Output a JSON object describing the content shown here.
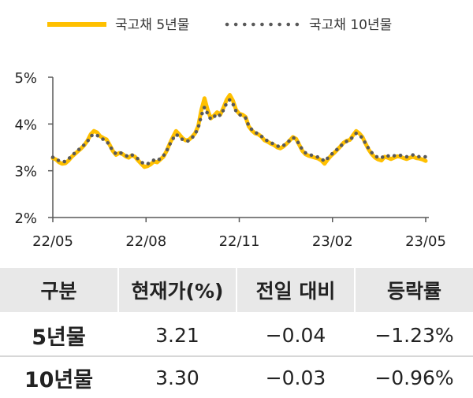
{
  "chart_data": {
    "type": "line",
    "title": "",
    "xlabel": "",
    "ylabel": "",
    "x_ticks": [
      "22/05",
      "22/08",
      "22/11",
      "23/02",
      "23/05"
    ],
    "y_ticks": [
      "2%",
      "3%",
      "4%",
      "5%"
    ],
    "ylim": [
      2,
      5
    ],
    "unit": "%",
    "grid": false,
    "legend": "top",
    "series": [
      {
        "name": "국고채 5년물",
        "color": "#FFC000",
        "style": "solid",
        "values": [
          3.27,
          3.24,
          3.18,
          3.15,
          3.16,
          3.22,
          3.3,
          3.36,
          3.42,
          3.48,
          3.55,
          3.65,
          3.78,
          3.85,
          3.82,
          3.74,
          3.7,
          3.67,
          3.55,
          3.42,
          3.34,
          3.38,
          3.36,
          3.31,
          3.28,
          3.33,
          3.3,
          3.22,
          3.15,
          3.08,
          3.1,
          3.14,
          3.2,
          3.18,
          3.24,
          3.3,
          3.42,
          3.58,
          3.72,
          3.85,
          3.78,
          3.7,
          3.65,
          3.66,
          3.72,
          3.8,
          3.95,
          4.3,
          4.55,
          4.3,
          4.12,
          4.18,
          4.25,
          4.2,
          4.35,
          4.52,
          4.62,
          4.5,
          4.3,
          4.22,
          4.2,
          4.15,
          3.95,
          3.86,
          3.8,
          3.78,
          3.73,
          3.65,
          3.62,
          3.58,
          3.55,
          3.5,
          3.48,
          3.52,
          3.58,
          3.65,
          3.72,
          3.68,
          3.55,
          3.42,
          3.35,
          3.32,
          3.3,
          3.28,
          3.26,
          3.22,
          3.15,
          3.24,
          3.32,
          3.38,
          3.45,
          3.52,
          3.6,
          3.64,
          3.66,
          3.76,
          3.85,
          3.8,
          3.72,
          3.58,
          3.45,
          3.35,
          3.28,
          3.24,
          3.22,
          3.3,
          3.28,
          3.25,
          3.28,
          3.31,
          3.3,
          3.27,
          3.25,
          3.28,
          3.3,
          3.27,
          3.26,
          3.24,
          3.21
        ]
      },
      {
        "name": "국고채 10년물",
        "color": "#595959",
        "style": "dotted",
        "values": [
          3.29,
          3.26,
          3.21,
          3.19,
          3.2,
          3.25,
          3.33,
          3.38,
          3.44,
          3.5,
          3.56,
          3.63,
          3.74,
          3.78,
          3.76,
          3.71,
          3.67,
          3.64,
          3.53,
          3.43,
          3.36,
          3.39,
          3.37,
          3.33,
          3.3,
          3.34,
          3.31,
          3.25,
          3.19,
          3.14,
          3.15,
          3.18,
          3.23,
          3.21,
          3.26,
          3.32,
          3.42,
          3.56,
          3.68,
          3.78,
          3.73,
          3.67,
          3.63,
          3.64,
          3.7,
          3.78,
          3.92,
          4.18,
          4.36,
          4.22,
          4.1,
          4.15,
          4.22,
          4.18,
          4.3,
          4.45,
          4.52,
          4.43,
          4.27,
          4.2,
          4.18,
          4.13,
          3.96,
          3.88,
          3.82,
          3.79,
          3.74,
          3.67,
          3.64,
          3.6,
          3.57,
          3.53,
          3.51,
          3.54,
          3.59,
          3.65,
          3.71,
          3.67,
          3.56,
          3.45,
          3.38,
          3.35,
          3.33,
          3.31,
          3.29,
          3.26,
          3.2,
          3.27,
          3.34,
          3.4,
          3.46,
          3.52,
          3.59,
          3.63,
          3.65,
          3.73,
          3.8,
          3.76,
          3.7,
          3.58,
          3.47,
          3.38,
          3.32,
          3.28,
          3.27,
          3.33,
          3.32,
          3.3,
          3.32,
          3.34,
          3.33,
          3.31,
          3.3,
          3.32,
          3.34,
          3.31,
          3.3,
          3.29,
          3.3
        ]
      }
    ]
  },
  "table": {
    "headers": [
      "구분",
      "현재가(%)",
      "전일 대비",
      "등락률"
    ],
    "rows": [
      [
        "5년물",
        "3.21",
        "−0.04",
        "−1.23%"
      ],
      [
        "10년물",
        "3.30",
        "−0.03",
        "−0.96%"
      ]
    ]
  }
}
